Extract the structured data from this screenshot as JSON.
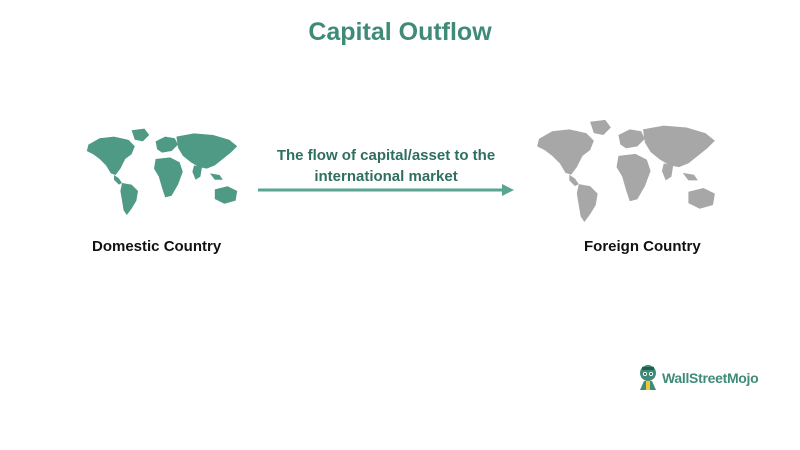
{
  "title": "Capital Outflow",
  "flow_label": "The flow of capital/asset to the international market",
  "domestic_label": "Domestic Country",
  "foreign_label": "Foreign Country",
  "logo_text": "WallStreetMojo",
  "colors": {
    "accent": "#3f8b78",
    "map_green": "#4f9a85",
    "map_gray": "#a7a7a7",
    "arrow": "#5aa592",
    "text_dark": "#111111"
  },
  "icons": [
    "world-map-green",
    "world-map-gray",
    "arrow-right-icon",
    "wallstreetmojo-logo-icon"
  ]
}
